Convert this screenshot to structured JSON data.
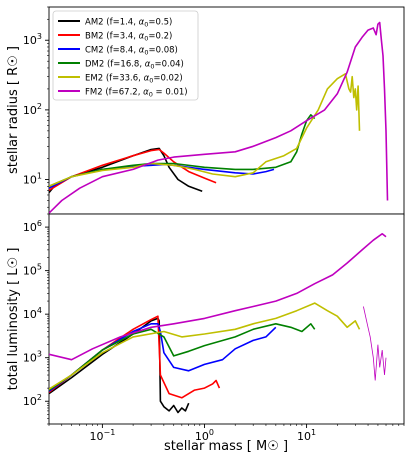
{
  "chart_data": {
    "type": "line",
    "shared_x": {
      "label": "stellar mass [ M☉ ]",
      "scale": "log",
      "lim": [
        0.03,
        90
      ],
      "ticks": [
        {
          "v": 0.1,
          "b": "10",
          "e": "−1"
        },
        {
          "v": 1,
          "b": "10",
          "e": "0"
        },
        {
          "v": 10,
          "b": "10",
          "e": "1"
        }
      ]
    },
    "legend": {
      "location": "upper left of top panel",
      "entries": [
        {
          "model": "AM2",
          "f": "f=1.4,",
          "a": "=0.5)",
          "color": "#000000"
        },
        {
          "model": "BM2",
          "f": "f=3.4,",
          "a": "=0.2)",
          "color": "#ff0000"
        },
        {
          "model": "CM2",
          "f": "f=8.4,",
          "a": "=0.08)",
          "color": "#0000ff"
        },
        {
          "model": "DM2",
          "f": "f=16.8,",
          "a": "=0.04)",
          "color": "#008000"
        },
        {
          "model": "EM2",
          "f": "f=33.6,",
          "a": "=0.02)",
          "color": "#bfbf00"
        },
        {
          "model": "FM2",
          "f": "f=67.2,",
          "a": " = 0.01)",
          "color": "#bf00bf"
        }
      ]
    },
    "panels": [
      {
        "name": "radius",
        "ylabel": "stellar radius [ R☉ ]",
        "yscale": "log",
        "ylim": [
          3.2,
          3000
        ],
        "yticks": [
          {
            "v": 10,
            "e": "1"
          },
          {
            "v": 100,
            "e": "2"
          },
          {
            "v": 1000,
            "e": "3"
          }
        ],
        "series": [
          {
            "model": "AM2",
            "color": "#000000",
            "points": [
              [
                0.03,
                6.5
              ],
              [
                0.035,
                8.5
              ],
              [
                0.05,
                11
              ],
              [
                0.1,
                15
              ],
              [
                0.2,
                22
              ],
              [
                0.3,
                27
              ],
              [
                0.36,
                28
              ],
              [
                0.4,
                22
              ],
              [
                0.45,
                15
              ],
              [
                0.55,
                10
              ],
              [
                0.7,
                8
              ],
              [
                0.95,
                6.8
              ]
            ]
          },
          {
            "model": "BM2",
            "color": "#ff0000",
            "points": [
              [
                0.03,
                7
              ],
              [
                0.05,
                11
              ],
              [
                0.1,
                16
              ],
              [
                0.2,
                22
              ],
              [
                0.3,
                26
              ],
              [
                0.36,
                27
              ],
              [
                0.4,
                24
              ],
              [
                0.5,
                18
              ],
              [
                0.7,
                13
              ],
              [
                1.0,
                10.5
              ],
              [
                1.3,
                9
              ]
            ]
          },
          {
            "model": "CM2",
            "color": "#0000ff",
            "points": [
              [
                0.03,
                7.5
              ],
              [
                0.05,
                11
              ],
              [
                0.1,
                14
              ],
              [
                0.2,
                15.5
              ],
              [
                0.3,
                16
              ],
              [
                0.4,
                16.5
              ],
              [
                0.5,
                16
              ],
              [
                0.7,
                15
              ],
              [
                1.0,
                14
              ],
              [
                2.0,
                12.5
              ],
              [
                3.0,
                12
              ],
              [
                4.0,
                13
              ],
              [
                4.8,
                14
              ]
            ]
          },
          {
            "model": "DM2",
            "color": "#008000",
            "points": [
              [
                0.03,
                8
              ],
              [
                0.05,
                11
              ],
              [
                0.1,
                14
              ],
              [
                0.2,
                16
              ],
              [
                0.3,
                17
              ],
              [
                0.5,
                17
              ],
              [
                1.0,
                15
              ],
              [
                2.0,
                14
              ],
              [
                3.0,
                14
              ],
              [
                5.0,
                15
              ],
              [
                7.0,
                18
              ],
              [
                8.0,
                25
              ],
              [
                9.0,
                45
              ],
              [
                10,
                70
              ],
              [
                11,
                85
              ],
              [
                12,
                75
              ]
            ]
          },
          {
            "model": "EM2",
            "color": "#bfbf00",
            "points": [
              [
                0.03,
                8
              ],
              [
                0.05,
                11
              ],
              [
                0.1,
                13.5
              ],
              [
                0.2,
                15
              ],
              [
                0.3,
                17
              ],
              [
                0.5,
                16
              ],
              [
                0.8,
                14
              ],
              [
                1.2,
                12
              ],
              [
                2.0,
                11
              ],
              [
                3.0,
                12.5
              ],
              [
                4.0,
                18
              ],
              [
                6.0,
                22
              ],
              [
                8.0,
                28
              ],
              [
                10,
                55
              ],
              [
                13,
                100
              ],
              [
                16,
                200
              ],
              [
                20,
                280
              ],
              [
                24,
                330
              ],
              [
                26,
                200
              ],
              [
                27,
                180
              ],
              [
                28,
                300
              ],
              [
                29,
                150
              ],
              [
                30,
                200
              ],
              [
                31,
                100
              ],
              [
                32,
                220
              ],
              [
                33,
                50
              ]
            ]
          },
          {
            "model": "FM2",
            "color": "#bf00bf",
            "points": [
              [
                0.03,
                3.3
              ],
              [
                0.04,
                5
              ],
              [
                0.06,
                7.5
              ],
              [
                0.1,
                11
              ],
              [
                0.2,
                14
              ],
              [
                0.35,
                19
              ],
              [
                0.5,
                21
              ],
              [
                1,
                23
              ],
              [
                2,
                25
              ],
              [
                3,
                30
              ],
              [
                5,
                40
              ],
              [
                7,
                50
              ],
              [
                10,
                70
              ],
              [
                15,
                100
              ],
              [
                20,
                170
              ],
              [
                25,
                350
              ],
              [
                30,
                800
              ],
              [
                35,
                1100
              ],
              [
                40,
                1400
              ],
              [
                45,
                1500
              ],
              [
                48,
                1200
              ],
              [
                50,
                1700
              ],
              [
                52,
                1800
              ],
              [
                54,
                1000
              ],
              [
                56,
                600
              ],
              [
                58,
                200
              ],
              [
                60,
                50
              ],
              [
                62,
                5
              ]
            ]
          }
        ]
      },
      {
        "name": "luminosity",
        "ylabel": "total luminosity [ L☉ ]",
        "yscale": "log",
        "ylim": [
          30,
          2000000
        ],
        "yticks": [
          {
            "v": 100,
            "e": "2"
          },
          {
            "v": 1000,
            "e": "3"
          },
          {
            "v": 10000,
            "e": "4"
          },
          {
            "v": 100000,
            "e": "5"
          },
          {
            "v": 1000000,
            "e": "6"
          }
        ],
        "series": [
          {
            "model": "AM2",
            "color": "#000000",
            "points": [
              [
                0.03,
                150
              ],
              [
                0.05,
                350
              ],
              [
                0.1,
                1200
              ],
              [
                0.2,
                3500
              ],
              [
                0.3,
                7000
              ],
              [
                0.35,
                8000
              ],
              [
                0.36,
                7000
              ],
              [
                0.37,
                100
              ],
              [
                0.4,
                75
              ],
              [
                0.45,
                60
              ],
              [
                0.5,
                80
              ],
              [
                0.55,
                55
              ],
              [
                0.6,
                70
              ],
              [
                0.65,
                60
              ],
              [
                0.7,
                90
              ]
            ]
          },
          {
            "model": "BM2",
            "color": "#ff0000",
            "points": [
              [
                0.03,
                160
              ],
              [
                0.05,
                400
              ],
              [
                0.1,
                1500
              ],
              [
                0.2,
                4500
              ],
              [
                0.3,
                7500
              ],
              [
                0.35,
                9000
              ],
              [
                0.37,
                400
              ],
              [
                0.45,
                150
              ],
              [
                0.6,
                120
              ],
              [
                0.8,
                180
              ],
              [
                1.0,
                200
              ],
              [
                1.2,
                250
              ],
              [
                1.3,
                300
              ],
              [
                1.4,
                200
              ]
            ]
          },
          {
            "model": "CM2",
            "color": "#0000ff",
            "points": [
              [
                0.03,
                170
              ],
              [
                0.05,
                400
              ],
              [
                0.1,
                1500
              ],
              [
                0.2,
                4000
              ],
              [
                0.3,
                6000
              ],
              [
                0.35,
                6000
              ],
              [
                0.37,
                4000
              ],
              [
                0.4,
                1300
              ],
              [
                0.5,
                600
              ],
              [
                0.7,
                500
              ],
              [
                1.0,
                700
              ],
              [
                1.5,
                900
              ],
              [
                2.0,
                1600
              ],
              [
                3.0,
                2500
              ],
              [
                4.0,
                3000
              ],
              [
                5.0,
                5000
              ]
            ]
          },
          {
            "model": "DM2",
            "color": "#008000",
            "points": [
              [
                0.03,
                180
              ],
              [
                0.05,
                400
              ],
              [
                0.1,
                1500
              ],
              [
                0.2,
                3500
              ],
              [
                0.3,
                4500
              ],
              [
                0.4,
                3000
              ],
              [
                0.5,
                1100
              ],
              [
                0.7,
                1400
              ],
              [
                1.0,
                1900
              ],
              [
                2.0,
                3000
              ],
              [
                3.0,
                4500
              ],
              [
                5.0,
                6000
              ],
              [
                7.0,
                5000
              ],
              [
                9.0,
                4000
              ],
              [
                11,
                6000
              ],
              [
                12,
                4500
              ]
            ]
          },
          {
            "model": "EM2",
            "color": "#bfbf00",
            "points": [
              [
                0.03,
                190
              ],
              [
                0.05,
                400
              ],
              [
                0.1,
                1300
              ],
              [
                0.2,
                3000
              ],
              [
                0.4,
                4000
              ],
              [
                0.6,
                3000
              ],
              [
                1.0,
                3500
              ],
              [
                2.0,
                4500
              ],
              [
                3.0,
                6000
              ],
              [
                5.0,
                8000
              ],
              [
                8.0,
                12000
              ],
              [
                12,
                18000
              ],
              [
                16,
                12000
              ],
              [
                20,
                9000
              ],
              [
                25,
                5000
              ],
              [
                30,
                7000
              ],
              [
                33,
                4500
              ]
            ]
          },
          {
            "model": "FM2",
            "color": "#bf00bf",
            "points": [
              [
                0.03,
                1200
              ],
              [
                0.05,
                900
              ],
              [
                0.08,
                1600
              ],
              [
                0.15,
                3000
              ],
              [
                0.3,
                5000
              ],
              [
                0.5,
                6000
              ],
              [
                1,
                8000
              ],
              [
                2,
                12000
              ],
              [
                3,
                15000
              ],
              [
                5,
                20000
              ],
              [
                8,
                30000
              ],
              [
                12,
                50000
              ],
              [
                18,
                80000
              ],
              [
                25,
                150000
              ],
              [
                35,
                300000
              ],
              [
                45,
                500000
              ],
              [
                55,
                700000
              ],
              [
                60,
                600000
              ]
            ],
            "extra_line": [
              [
                36,
                15000
              ],
              [
                40,
                5000
              ],
              [
                42,
                3000
              ],
              [
                45,
                1000
              ],
              [
                47,
                300
              ],
              [
                50,
                2000
              ],
              [
                52,
                600
              ],
              [
                55,
                1500
              ],
              [
                58,
                400
              ],
              [
                60,
                1000
              ]
            ]
          }
        ]
      }
    ]
  }
}
